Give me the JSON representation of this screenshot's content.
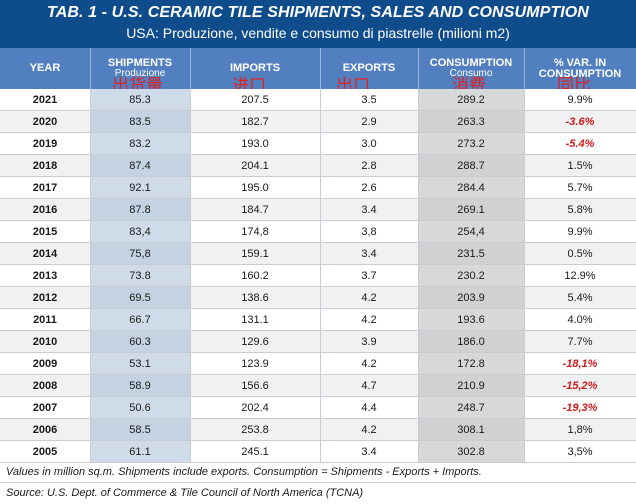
{
  "title": "TAB. 1 - U.S. CERAMIC TILE SHIPMENTS, SALES AND CONSUMPTION",
  "subtitle": "USA: Produzione, vendite e consumo di piastrelle (milioni m2)",
  "headers": {
    "year": "YEAR",
    "shipments": "SHIPMENTS",
    "shipments_sub": "Produzione",
    "imports": "IMPORTS",
    "exports": "EXPORTS",
    "consumption": "CONSUMPTION",
    "consumption_sub": "Consumo",
    "var": "% VAR. IN CONSUMPTION"
  },
  "annotations": {
    "shipments": "出货量",
    "imports": "进口",
    "exports": "出口",
    "consumption": "消费",
    "var": "同比"
  },
  "footnote": "Values in million sq.m. Shipments include exports. Consumption = Shipments - Exports + Imports.",
  "source": "Source: U.S. Dept. of Commerce & Tile Council of North America (TCNA)",
  "colors": {
    "title_band": "#0f4c8c",
    "header_band": "#527fc0",
    "negative": "#d01a1a",
    "annotation": "#e02020"
  },
  "chart_data": {
    "type": "table",
    "columns": [
      "YEAR",
      "SHIPMENTS",
      "IMPORTS",
      "EXPORTS",
      "CONSUMPTION",
      "% VAR. IN CONSUMPTION"
    ],
    "rows": [
      [
        "2021",
        "85.3",
        "207.5",
        "3.5",
        "289.2",
        "9.9%"
      ],
      [
        "2020",
        "83.5",
        "182.7",
        "2.9",
        "263.3",
        "-3.6%"
      ],
      [
        "2019",
        "83.2",
        "193.0",
        "3.0",
        "273.2",
        "-5.4%"
      ],
      [
        "2018",
        "87.4",
        "204.1",
        "2.8",
        "288.7",
        "1.5%"
      ],
      [
        "2017",
        "92.1",
        "195.0",
        "2.6",
        "284.4",
        "5.7%"
      ],
      [
        "2016",
        "87.8",
        "184.7",
        "3.4",
        "269.1",
        "5.8%"
      ],
      [
        "2015",
        "83,4",
        "174,8",
        "3,8",
        "254,4",
        "9.9%"
      ],
      [
        "2014",
        "75,8",
        "159.1",
        "3.4",
        "231.5",
        "0.5%"
      ],
      [
        "2013",
        "73.8",
        "160.2",
        "3.7",
        "230.2",
        "12.9%"
      ],
      [
        "2012",
        "69.5",
        "138.6",
        "4.2",
        "203.9",
        "5.4%"
      ],
      [
        "2011",
        "66.7",
        "131.1",
        "4.2",
        "193.6",
        "4.0%"
      ],
      [
        "2010",
        "60.3",
        "129.6",
        "3.9",
        "186.0",
        "7.7%"
      ],
      [
        "2009",
        "53.1",
        "123.9",
        "4.2",
        "172.8",
        "-18,1%"
      ],
      [
        "2008",
        "58.9",
        "156.6",
        "4.7",
        "210.9",
        "-15,2%"
      ],
      [
        "2007",
        "50.6",
        "202.4",
        "4.4",
        "248.7",
        "-19,3%"
      ],
      [
        "2006",
        "58.5",
        "253.8",
        "4.2",
        "308.1",
        "1,8%"
      ],
      [
        "2005",
        "61.1",
        "245.1",
        "3.4",
        "302.8",
        "3,5%"
      ]
    ]
  }
}
